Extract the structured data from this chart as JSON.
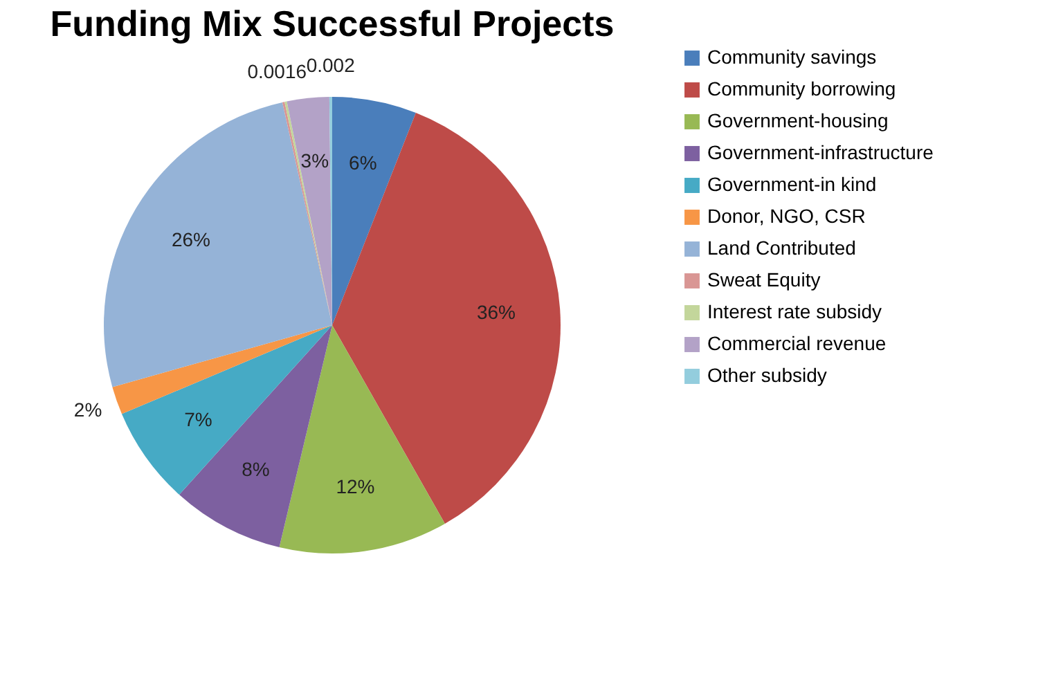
{
  "chart_data": {
    "type": "pie",
    "title": "Funding Mix Successful Projects",
    "categories": [
      "Community savings",
      "Community borrowing",
      "Government-housing",
      "Government-infrastructure",
      "Government-in kind",
      "Donor, NGO, CSR",
      "Land Contributed",
      "Sweat Equity",
      "Interest rate subsidy",
      "Commercial revenue",
      "Other subsidy"
    ],
    "values": [
      0.06,
      0.36,
      0.12,
      0.08,
      0.07,
      0.02,
      0.26,
      0.0016,
      0.0016,
      0.03,
      0.002
    ],
    "value_labels": [
      "6%",
      "36%",
      "12%",
      "8%",
      "7%",
      "2%",
      "26%",
      "0.0016",
      null,
      "3%",
      "0.002"
    ],
    "colors": [
      "#4a7ebb",
      "#be4b48",
      "#98b954",
      "#7d60a0",
      "#46aac5",
      "#f79646",
      "#95b3d7",
      "#d99694",
      "#c3d69b",
      "#b3a2c7",
      "#93cddd"
    ],
    "legend": "right"
  }
}
